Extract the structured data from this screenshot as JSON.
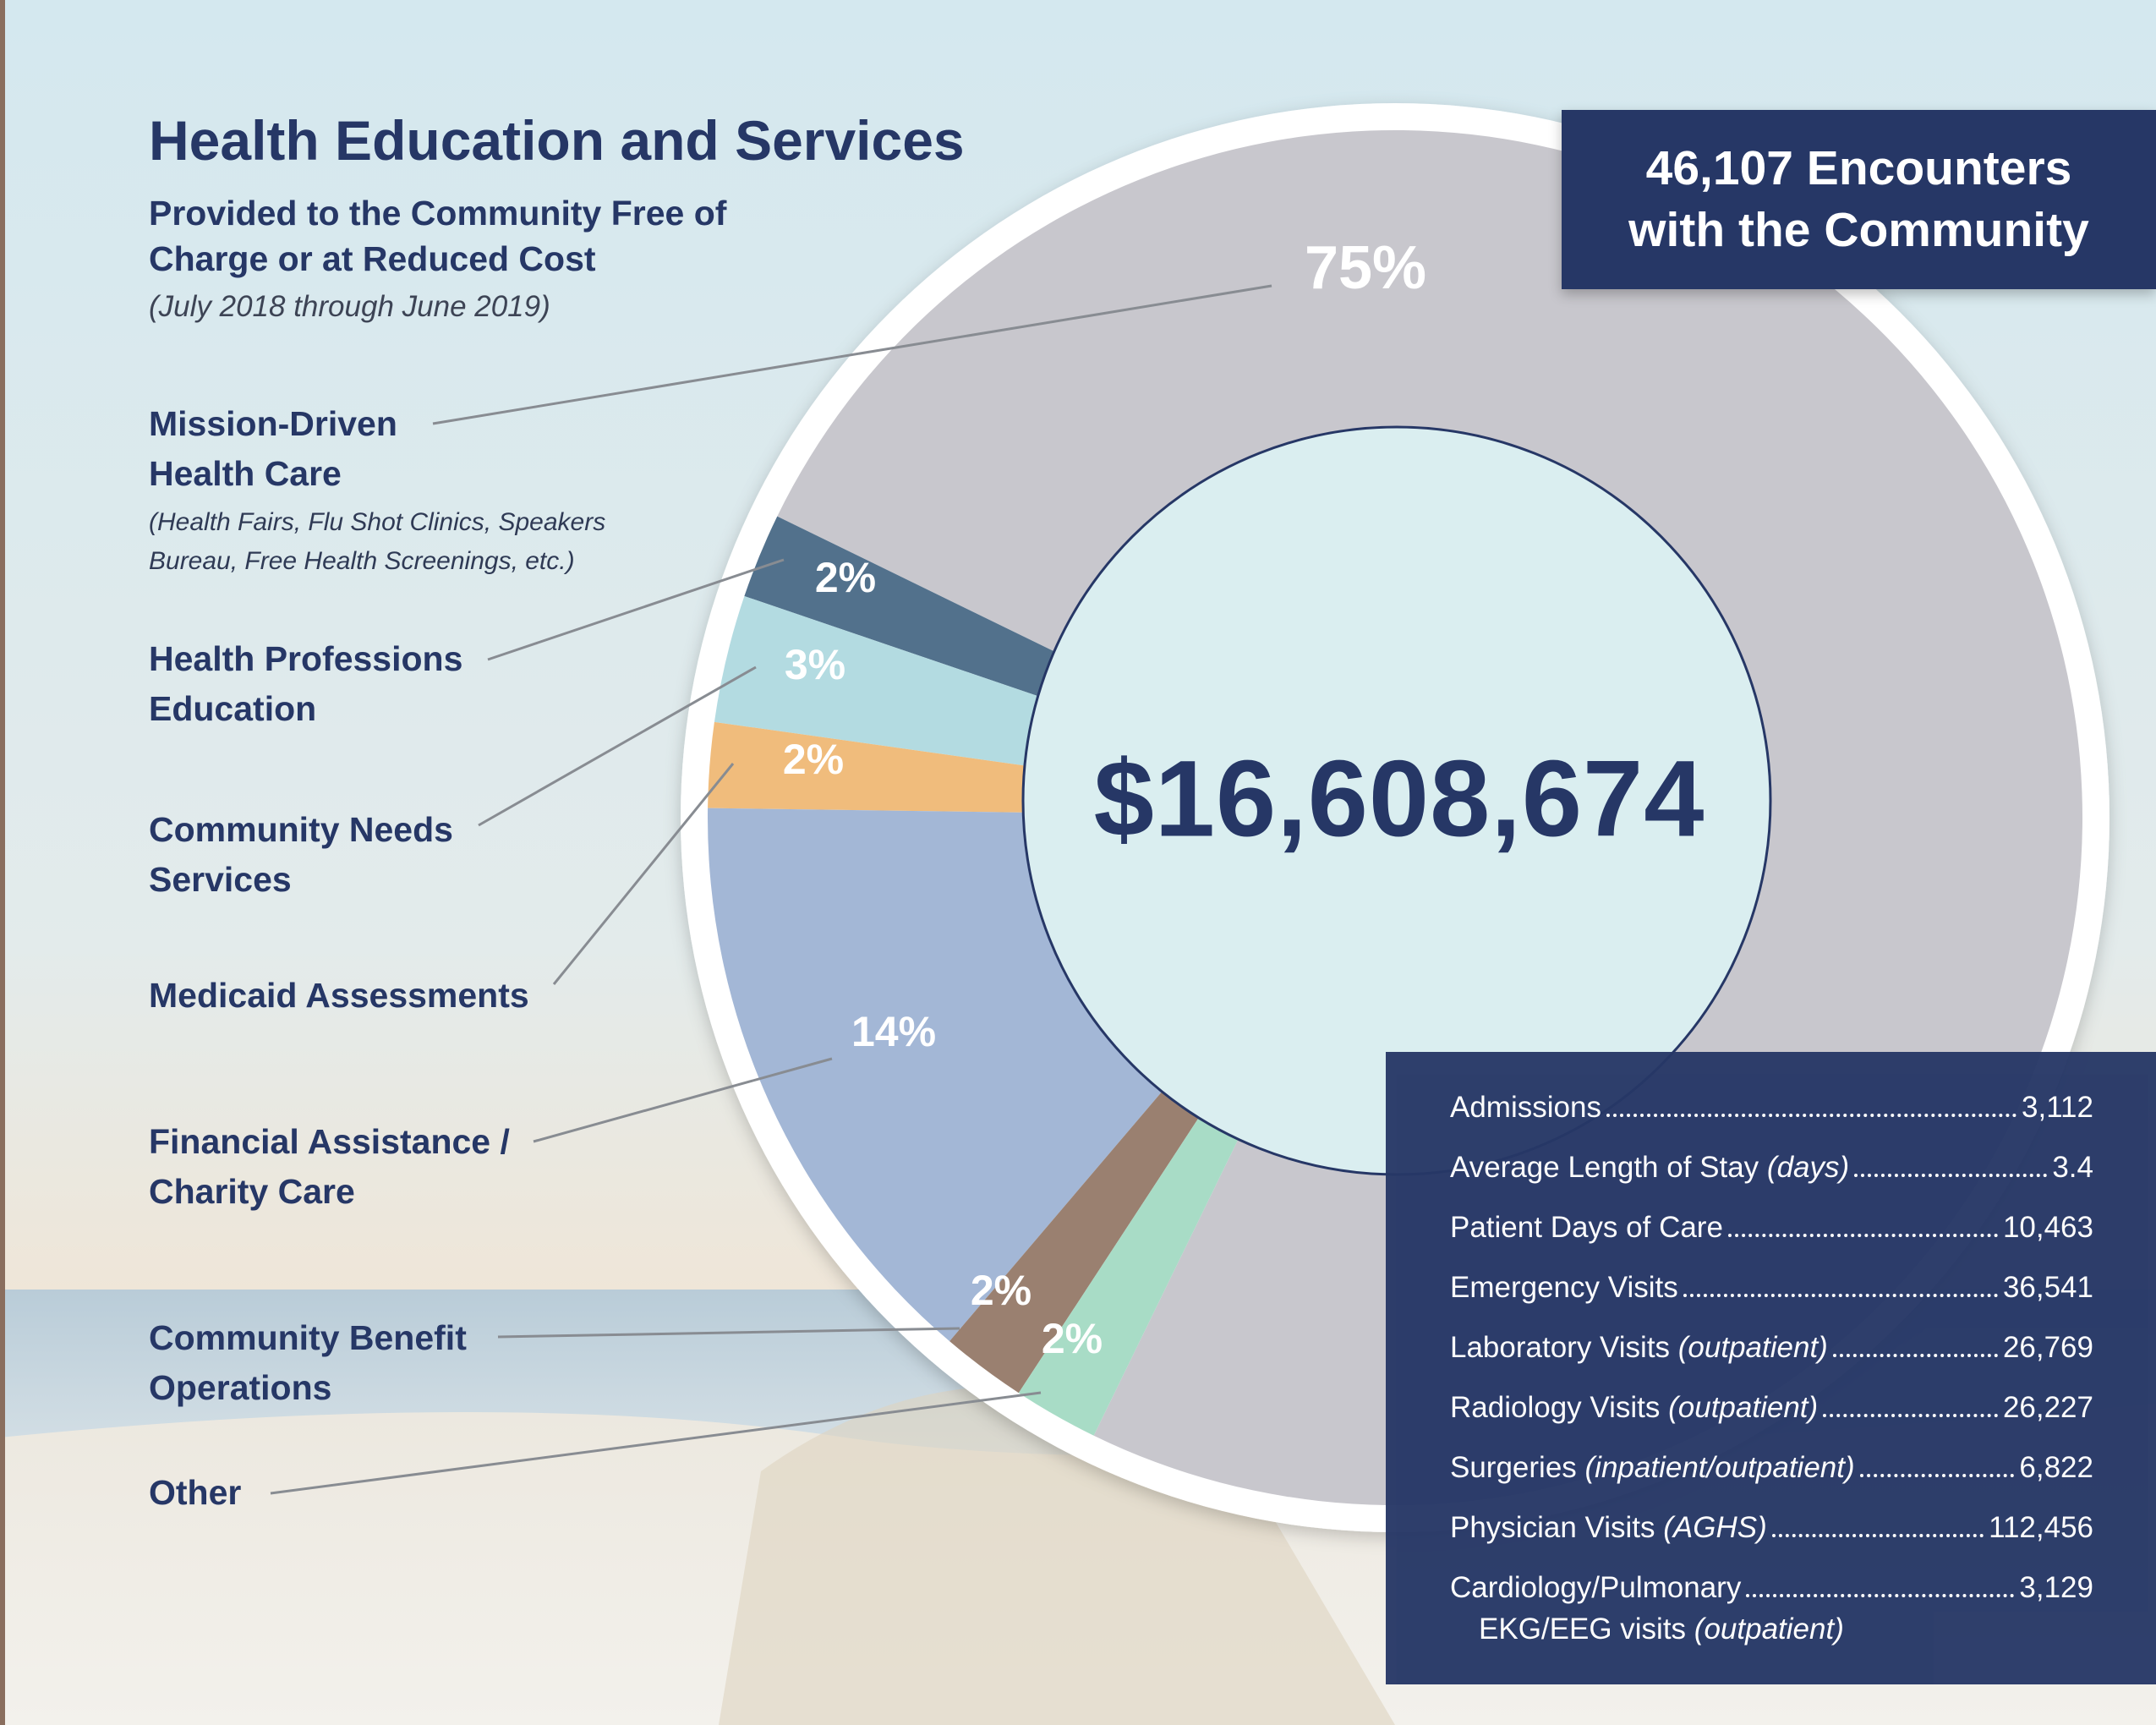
{
  "title": "Health Education and Services",
  "subtitle": "Provided to the Community Free of Charge or at Reduced Cost",
  "period": "(July 2018 through June 2019)",
  "chart_data": {
    "type": "pie",
    "donut": true,
    "center_label": "$16,608,674",
    "categories": [
      "Mission-Driven Health Care",
      "Health Professions Education",
      "Community Needs Services",
      "Medicaid Assessments",
      "Financial Assistance / Charity Care",
      "Community Benefit Operations",
      "Other"
    ],
    "annotation": "(Health Fairs, Flu Shot Clinics, Speakers Bureau, Free Health Screenings, etc.)",
    "values": [
      75,
      2,
      3,
      2,
      14,
      2,
      2
    ],
    "value_labels": [
      "75%",
      "2%",
      "3%",
      "2%",
      "14%",
      "2%",
      "2%"
    ],
    "colors": [
      "#c8c7cd",
      "#52718c",
      "#b3dbe1",
      "#f0bc7c",
      "#a3b7d6",
      "#9a8070",
      "#a8dcc6"
    ]
  },
  "encounters": "46,107 Encounters with the Community",
  "stats": {
    "rows": [
      {
        "label": "Admissions",
        "value": "3,112"
      },
      {
        "label": "Average Length of Stay",
        "note": "(days)",
        "value": "3.4"
      },
      {
        "label": "Patient Days of Care",
        "value": "10,463"
      },
      {
        "label": "Emergency Visits",
        "value": "36,541"
      },
      {
        "label": "Laboratory Visits",
        "note": "(outpatient)",
        "value": "26,769"
      },
      {
        "label": "Radiology Visits",
        "note": "(outpatient)",
        "value": "26,227"
      },
      {
        "label": "Surgeries",
        "note": "(inpatient/outpatient)",
        "value": "6,822"
      },
      {
        "label": "Physician Visits",
        "note": "(AGHS)",
        "value": "112,456"
      },
      {
        "label": "Cardiology/Pulmonary",
        "value": "3,129",
        "sublabel": "EKG/EEG visits",
        "subnote": "(outpatient)"
      }
    ]
  }
}
